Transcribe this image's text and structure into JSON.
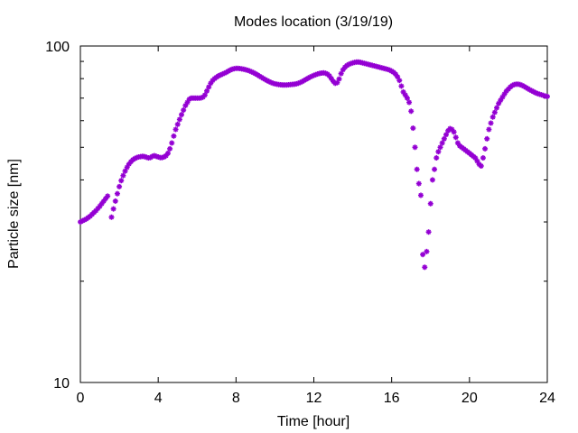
{
  "chart_data": {
    "type": "scatter",
    "title": "Modes location (3/19/19)",
    "xlabel": "Time [hour]",
    "ylabel": "Particle size [nm]",
    "xlim": [
      0,
      24
    ],
    "ylim": [
      10,
      100
    ],
    "yscale": "log",
    "grid": false,
    "marker_color": "#9400d3",
    "marker_shape": "star",
    "x_ticks": [
      0,
      4,
      8,
      12,
      16,
      20,
      24
    ],
    "x_tick_labels": [
      "0",
      "4",
      "8",
      "12",
      "16",
      "20",
      "24"
    ],
    "y_ticks": [
      10,
      100
    ],
    "y_tick_labels": [
      "10",
      "100"
    ],
    "series": [
      {
        "x": [
          0.0,
          0.1,
          0.2,
          0.3,
          0.4,
          0.5,
          0.6,
          0.7,
          0.8,
          0.9,
          1.0,
          1.1,
          1.2,
          1.3,
          1.4,
          1.6,
          1.7,
          1.8,
          1.9,
          2.0,
          2.1,
          2.2,
          2.3,
          2.4,
          2.5,
          2.6,
          2.7,
          2.8,
          2.9,
          3.0,
          3.1,
          3.2,
          3.3,
          3.4,
          3.5,
          3.6,
          3.7,
          3.8,
          3.9,
          4.0,
          4.1,
          4.2,
          4.3,
          4.4,
          4.5,
          4.6,
          4.7,
          4.8,
          4.9,
          5.0,
          5.1,
          5.2,
          5.3,
          5.4,
          5.5,
          5.6,
          5.7,
          5.8,
          5.9,
          6.0,
          6.1,
          6.2,
          6.3,
          6.4,
          6.5,
          6.6,
          6.7,
          6.8,
          6.9,
          7.0,
          7.1,
          7.2,
          7.3,
          7.4,
          7.5,
          7.6,
          7.7,
          7.8,
          7.9,
          8.0,
          8.1,
          8.2,
          8.3,
          8.4,
          8.5,
          8.6,
          8.7,
          8.8,
          8.9,
          9.0,
          9.1,
          9.2,
          9.3,
          9.4,
          9.5,
          9.6,
          9.7,
          9.8,
          9.9,
          10.0,
          10.1,
          10.2,
          10.3,
          10.4,
          10.5,
          10.6,
          10.7,
          10.8,
          10.9,
          11.0,
          11.1,
          11.2,
          11.3,
          11.4,
          11.5,
          11.6,
          11.7,
          11.8,
          11.9,
          12.0,
          12.1,
          12.2,
          12.3,
          12.4,
          12.5,
          12.6,
          12.7,
          12.8,
          12.9,
          13.0,
          13.1,
          13.2,
          13.3,
          13.4,
          13.5,
          13.6,
          13.7,
          13.8,
          13.9,
          14.0,
          14.1,
          14.2,
          14.3,
          14.4,
          14.5,
          14.6,
          14.7,
          14.8,
          14.9,
          15.0,
          15.1,
          15.2,
          15.3,
          15.4,
          15.5,
          15.6,
          15.7,
          15.8,
          15.9,
          16.0,
          16.1,
          16.2,
          16.3,
          16.4,
          16.5,
          16.6,
          16.7,
          16.8,
          16.9,
          17.0,
          17.1,
          17.2,
          17.3,
          17.4,
          17.5,
          17.6,
          17.7,
          17.8,
          17.9,
          18.0,
          18.1,
          18.2,
          18.3,
          18.4,
          18.5,
          18.6,
          18.7,
          18.8,
          18.9,
          19.0,
          19.1,
          19.2,
          19.3,
          19.4,
          19.5,
          19.6,
          19.7,
          19.8,
          19.9,
          20.0,
          20.1,
          20.2,
          20.3,
          20.4,
          20.5,
          20.6,
          20.7,
          20.8,
          20.9,
          21.0,
          21.1,
          21.2,
          21.3,
          21.4,
          21.5,
          21.6,
          21.7,
          21.8,
          21.9,
          22.0,
          22.1,
          22.2,
          22.3,
          22.4,
          22.5,
          22.6,
          22.7,
          22.8,
          22.9,
          23.0,
          23.1,
          23.2,
          23.3,
          23.4,
          23.5,
          23.6,
          23.7,
          23.8,
          23.9,
          24.0
        ],
        "y": [
          30.0,
          30.2,
          30.4,
          30.6,
          30.9,
          31.2,
          31.6,
          32.0,
          32.4,
          32.9,
          33.4,
          34.0,
          34.6,
          35.2,
          35.8,
          31.0,
          32.8,
          34.6,
          36.4,
          38.2,
          39.8,
          41.2,
          42.5,
          43.6,
          44.6,
          45.3,
          45.9,
          46.3,
          46.6,
          46.8,
          46.9,
          47.0,
          46.9,
          46.7,
          46.5,
          46.6,
          47.0,
          47.2,
          47.0,
          46.8,
          46.6,
          46.6,
          46.8,
          47.2,
          48.0,
          49.5,
          51.5,
          54.0,
          56.5,
          58.5,
          60.5,
          62.5,
          64.5,
          66.5,
          68.0,
          69.5,
          70.0,
          70.0,
          70.0,
          70.0,
          70.0,
          70.1,
          70.5,
          71.5,
          73.5,
          75.5,
          77.5,
          79.0,
          80.0,
          80.8,
          81.5,
          82.0,
          82.5,
          83.0,
          83.5,
          84.2,
          84.8,
          85.3,
          85.6,
          85.8,
          85.8,
          85.7,
          85.5,
          85.3,
          85.0,
          84.7,
          84.3,
          83.8,
          83.3,
          82.7,
          82.1,
          81.4,
          80.8,
          80.1,
          79.5,
          78.9,
          78.4,
          77.9,
          77.5,
          77.2,
          77.0,
          76.8,
          76.7,
          76.6,
          76.6,
          76.6,
          76.7,
          76.8,
          76.9,
          77.0,
          77.2,
          77.5,
          77.9,
          78.4,
          79.0,
          79.6,
          80.2,
          80.8,
          81.3,
          81.8,
          82.2,
          82.6,
          82.9,
          83.1,
          83.2,
          83.0,
          82.5,
          81.5,
          80.0,
          78.5,
          77.5,
          77.8,
          79.8,
          82.8,
          85.0,
          86.5,
          87.5,
          88.2,
          88.7,
          89.1,
          89.4,
          89.6,
          89.6,
          89.4,
          89.1,
          88.8,
          88.5,
          88.2,
          87.9,
          87.6,
          87.3,
          87.0,
          86.7,
          86.4,
          86.1,
          85.8,
          85.5,
          85.2,
          84.8,
          84.2,
          83.5,
          82.5,
          81.0,
          79.0,
          76.0,
          73.0,
          71.5,
          70.0,
          68.0,
          64.0,
          57.0,
          50.0,
          43.0,
          39.0,
          36.0,
          24.0,
          22.0,
          24.5,
          28.0,
          34.0,
          40.0,
          43.0,
          46.5,
          48.5,
          50.0,
          51.5,
          53.0,
          54.5,
          56.0,
          56.8,
          56.5,
          55.5,
          53.5,
          51.5,
          50.5,
          50.0,
          49.5,
          49.0,
          48.5,
          48.0,
          47.5,
          47.0,
          46.5,
          45.5,
          44.5,
          44.0,
          46.5,
          49.5,
          53.0,
          56.5,
          59.0,
          61.5,
          63.5,
          65.5,
          67.5,
          69.0,
          70.5,
          72.0,
          73.5,
          74.5,
          75.5,
          76.3,
          76.8,
          77.0,
          77.0,
          76.8,
          76.4,
          75.9,
          75.3,
          74.7,
          74.1,
          73.6,
          73.1,
          72.6,
          72.2,
          71.9,
          71.6,
          71.3,
          71.0,
          70.8
        ]
      }
    ]
  }
}
